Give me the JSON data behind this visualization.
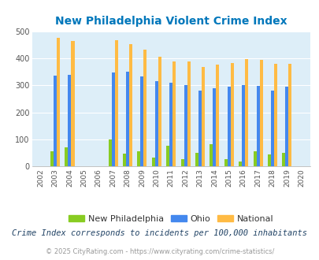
{
  "title": "New Philadelphia Violent Crime Index",
  "years": [
    2002,
    2003,
    2004,
    2005,
    2006,
    2007,
    2008,
    2009,
    2010,
    2011,
    2012,
    2013,
    2014,
    2015,
    2016,
    2017,
    2018,
    2019,
    2020
  ],
  "new_philadelphia": [
    0,
    57,
    70,
    0,
    0,
    100,
    48,
    57,
    32,
    75,
    27,
    50,
    83,
    27,
    18,
    57,
    43,
    50,
    0
  ],
  "ohio": [
    0,
    335,
    338,
    0,
    0,
    347,
    350,
    332,
    315,
    310,
    300,
    279,
    289,
    295,
    300,
    298,
    281,
    295,
    0
  ],
  "national": [
    0,
    476,
    463,
    0,
    0,
    466,
    453,
    431,
    405,
    387,
    387,
    368,
    376,
    383,
    398,
    394,
    380,
    380,
    0
  ],
  "new_philadelphia_color": "#88cc22",
  "ohio_color": "#4488ee",
  "national_color": "#ffbb44",
  "plot_bg_color": "#ddeef8",
  "title_color": "#0077bb",
  "grid_color": "#ffffff",
  "ylim": [
    0,
    500
  ],
  "yticks": [
    0,
    100,
    200,
    300,
    400,
    500
  ],
  "footer_text1": "Crime Index corresponds to incidents per 100,000 inhabitants",
  "footer_text2": "© 2025 CityRating.com - https://www.cityrating.com/crime-statistics/",
  "legend_labels": [
    "New Philadelphia",
    "Ohio",
    "National"
  ]
}
